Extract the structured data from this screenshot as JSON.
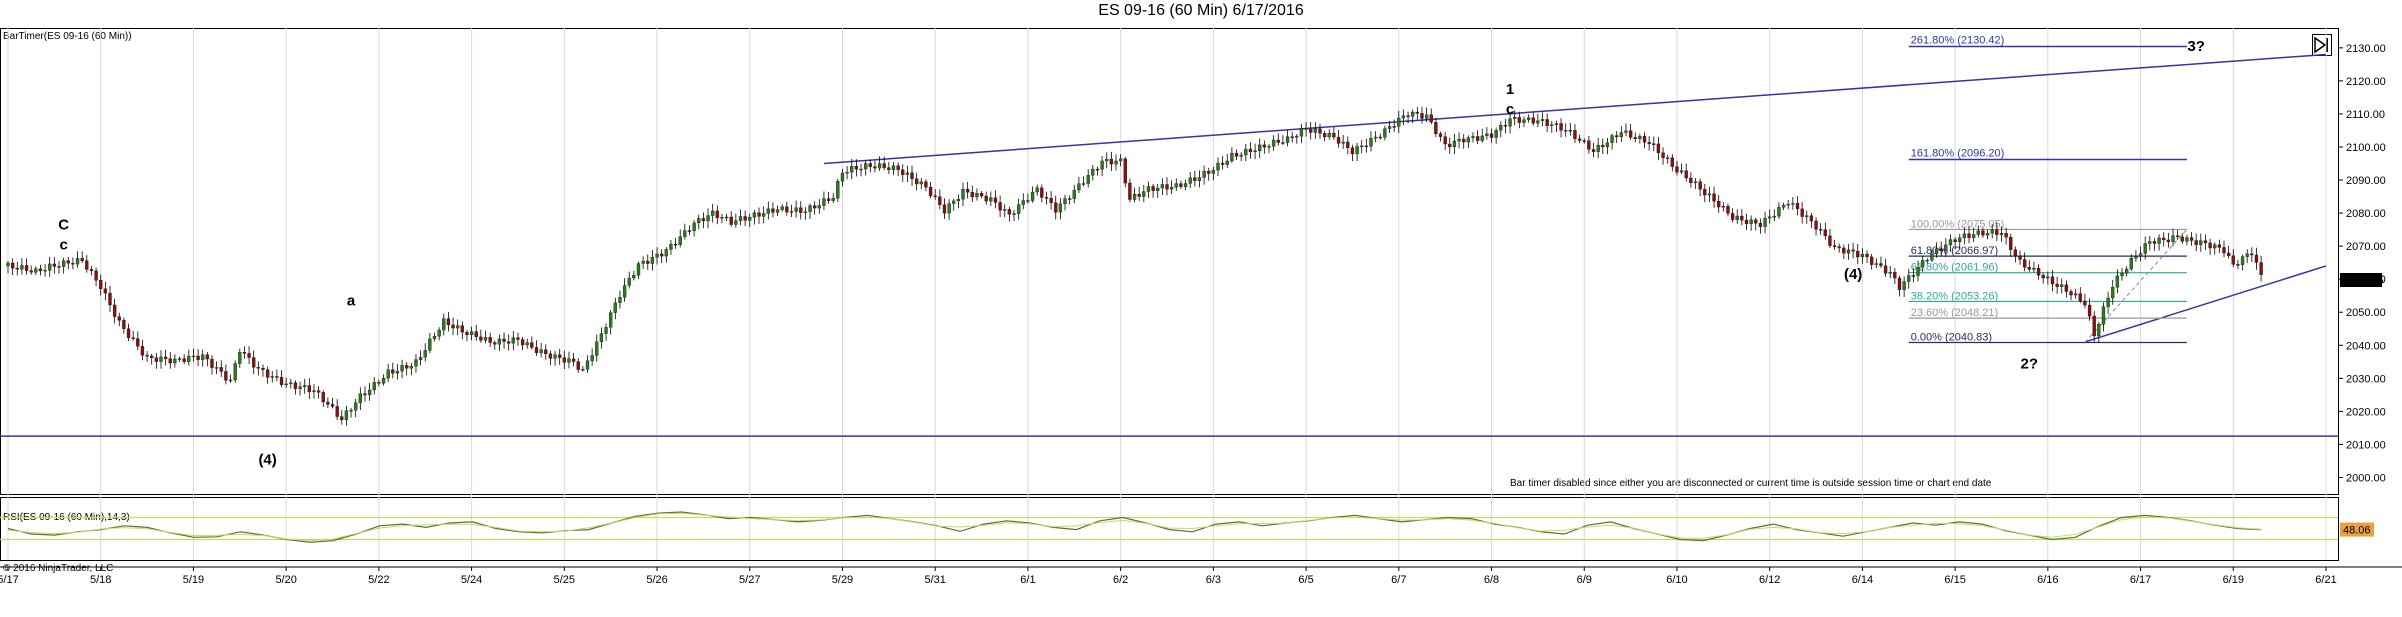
{
  "window": {
    "title": "ES 09-16 (60 Min)  6/17/2016",
    "bartimer_label": "BarTimer(ES 09-16 (60 Min))",
    "rsi_label": "RSI(ES 09-16 (60 Min),14,3)",
    "copyright": "© 2016 NinjaTrader, LLC",
    "bartimer_message": "Bar timer disabled since either you are disconnected or current time is outside session time or chart end date"
  },
  "colors": {
    "up_bar": "#2d7a1e",
    "down_bar": "#8a1010",
    "trendline": "#3333aa",
    "fib_dark": "#2a2a6a",
    "fib_green": "#2ea89a",
    "fib_gray": "#999999",
    "rsi_line": "#4f7a2a",
    "rsi_band": "#c8d86a",
    "price_tag_bg": "#000000",
    "rsi_tag_bg": "#e8a040"
  },
  "chart_data": {
    "type": "candlestick",
    "title": "ES 09-16 (60 Min)  6/17/2016",
    "ylim": [
      1995,
      2136
    ],
    "y_ticks": [
      2000,
      2010,
      2020,
      2030,
      2040,
      2050,
      2060,
      2070,
      2080,
      2090,
      2100,
      2110,
      2120,
      2130
    ],
    "x_labels": [
      "5/17",
      "5/18",
      "5/19",
      "5/20",
      "5/22",
      "5/24",
      "5/25",
      "5/26",
      "5/27",
      "5/29",
      "5/31",
      "6/1",
      "6/2",
      "6/3",
      "6/5",
      "6/7",
      "6/8",
      "6/9",
      "6/10",
      "6/12",
      "6/14",
      "6/15",
      "6/16",
      "6/17",
      "6/19",
      "6/21"
    ],
    "last_price": "2059.75",
    "price_path": [
      [
        0,
        2064
      ],
      [
        3,
        2061
      ],
      [
        6,
        2064
      ],
      [
        8,
        2066
      ],
      [
        10,
        2059
      ],
      [
        12,
        2048
      ],
      [
        15,
        2036
      ],
      [
        18,
        2034
      ],
      [
        21,
        2036
      ],
      [
        24,
        2030
      ],
      [
        25,
        2040
      ],
      [
        27,
        2034
      ],
      [
        30,
        2028
      ],
      [
        33,
        2025
      ],
      [
        36,
        2017
      ],
      [
        38,
        2025
      ],
      [
        41,
        2033
      ],
      [
        44,
        2035
      ],
      [
        47,
        2046
      ],
      [
        49,
        2043
      ],
      [
        52,
        2041
      ],
      [
        55,
        2043
      ],
      [
        58,
        2038
      ],
      [
        61,
        2034
      ],
      [
        62,
        2031
      ],
      [
        64,
        2042
      ],
      [
        66,
        2055
      ],
      [
        68,
        2065
      ],
      [
        71,
        2070
      ],
      [
        74,
        2077
      ],
      [
        76,
        2079
      ],
      [
        78,
        2076
      ],
      [
        80,
        2078
      ],
      [
        83,
        2082
      ],
      [
        86,
        2082
      ],
      [
        89,
        2085
      ],
      [
        90,
        2092
      ],
      [
        93,
        2093
      ],
      [
        96,
        2093
      ],
      [
        99,
        2089
      ],
      [
        101,
        2082
      ],
      [
        103,
        2087
      ],
      [
        106,
        2083
      ],
      [
        108,
        2078
      ],
      [
        111,
        2087
      ],
      [
        113,
        2082
      ],
      [
        116,
        2091
      ],
      [
        118,
        2096
      ],
      [
        120,
        2095
      ],
      [
        121,
        2083
      ],
      [
        123,
        2086
      ],
      [
        126,
        2088
      ],
      [
        129,
        2093
      ],
      [
        132,
        2098
      ],
      [
        135,
        2099
      ],
      [
        138,
        2101
      ],
      [
        140,
        2105
      ],
      [
        143,
        2104
      ],
      [
        145,
        2100
      ],
      [
        148,
        2104
      ],
      [
        151,
        2109
      ],
      [
        153,
        2108
      ],
      [
        155,
        2100
      ],
      [
        157,
        2103
      ],
      [
        160,
        2105
      ],
      [
        162,
        2109
      ],
      [
        165,
        2107
      ],
      [
        168,
        2104
      ],
      [
        171,
        2099
      ],
      [
        174,
        2106
      ],
      [
        177,
        2102
      ],
      [
        180,
        2092
      ],
      [
        183,
        2085
      ],
      [
        186,
        2079
      ],
      [
        189,
        2078
      ],
      [
        192,
        2084
      ],
      [
        195,
        2075
      ],
      [
        197,
        2068
      ],
      [
        200,
        2067
      ],
      [
        203,
        2063
      ],
      [
        204,
        2059
      ],
      [
        207,
        2067
      ],
      [
        210,
        2071
      ],
      [
        213,
        2073
      ],
      [
        215,
        2074
      ],
      [
        217,
        2066
      ],
      [
        219,
        2063
      ],
      [
        222,
        2057
      ],
      [
        224,
        2052
      ],
      [
        225,
        2042
      ],
      [
        227,
        2057
      ],
      [
        229,
        2065
      ],
      [
        231,
        2072
      ],
      [
        234,
        2074
      ],
      [
        237,
        2071
      ],
      [
        239,
        2068
      ],
      [
        240,
        2063
      ],
      [
        242,
        2067
      ],
      [
        243,
        2060
      ]
    ],
    "horizontal_lines": [
      {
        "value": 2012.5
      }
    ],
    "trendlines": [
      {
        "from": [
          88,
          2095
        ],
        "to": [
          250,
          2128
        ]
      },
      {
        "from": [
          224,
          2041
        ],
        "to": [
          250,
          2064
        ]
      }
    ],
    "fib_retracement": [
      {
        "label": "100.00% (2075.05)",
        "value": 2075.05,
        "color": "gray"
      },
      {
        "label": "61.80% (2066.97)",
        "value": 2066.97,
        "color": "dark"
      },
      {
        "label": "61.80% (2061.96)",
        "value": 2061.96,
        "color": "green"
      },
      {
        "label": "38.20% (2053.26)",
        "value": 2053.26,
        "color": "green"
      },
      {
        "label": "23.60% (2048.21)",
        "value": 2048.21,
        "color": "gray"
      },
      {
        "label": "0.00% (2040.83)",
        "value": 2040.83,
        "color": "dark"
      }
    ],
    "fib_extension": [
      {
        "label": "161.80% (2096.20)",
        "value": 2096.2
      },
      {
        "label": "261.80% (2130.42)",
        "value": 2130.42
      }
    ],
    "wave_labels": [
      {
        "text": "C",
        "x": 6,
        "price": 2075
      },
      {
        "text": "c",
        "x": 6,
        "price": 2069
      },
      {
        "text": "a",
        "x": 37,
        "price": 2052
      },
      {
        "text": "(4)",
        "x": 28,
        "price": 2004
      },
      {
        "text": "1",
        "x": 162,
        "price": 2116
      },
      {
        "text": "c",
        "x": 162,
        "price": 2110
      },
      {
        "text": "(4)",
        "x": 199,
        "price": 2060
      },
      {
        "text": "2?",
        "x": 218,
        "price": 2033
      },
      {
        "text": "3?",
        "x": 236,
        "price": 2129
      }
    ],
    "rsi": {
      "label": "RSI(ES 09-16 (60 Min),14,3)",
      "ylim": [
        0,
        100
      ],
      "levels": [
        70,
        30
      ],
      "last_value": "48.06",
      "values": [
        50,
        40,
        38,
        44,
        48,
        55,
        52,
        42,
        34,
        35,
        44,
        38,
        30,
        25,
        28,
        40,
        55,
        58,
        52,
        60,
        62,
        50,
        44,
        42,
        46,
        48,
        60,
        72,
        78,
        80,
        75,
        68,
        70,
        66,
        62,
        65,
        70,
        74,
        68,
        62,
        55,
        45,
        58,
        64,
        60,
        52,
        48,
        64,
        70,
        60,
        48,
        44,
        58,
        62,
        55,
        60,
        64,
        70,
        74,
        68,
        62,
        66,
        70,
        68,
        58,
        52,
        44,
        40,
        56,
        62,
        50,
        40,
        30,
        28,
        38,
        50,
        58,
        48,
        42,
        36,
        44,
        52,
        60,
        56,
        62,
        58,
        46,
        38,
        30,
        34,
        54,
        70,
        74,
        70,
        64,
        56,
        50,
        48
      ]
    }
  }
}
